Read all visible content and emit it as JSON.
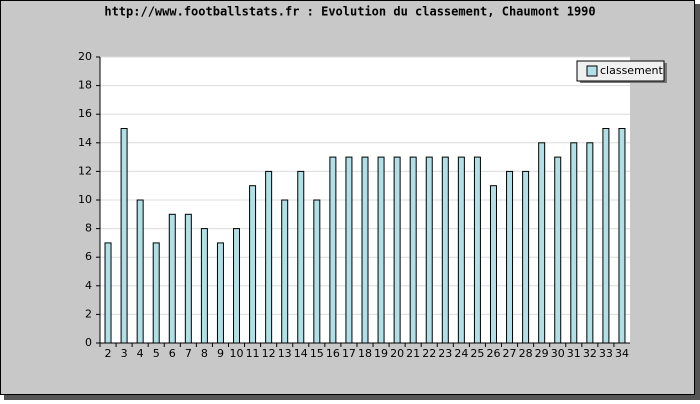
{
  "chart_data": {
    "type": "bar",
    "title": "http://www.footballstats.fr : Evolution du classement, Chaumont 1990",
    "categories": [
      "2",
      "3",
      "4",
      "5",
      "6",
      "7",
      "8",
      "9",
      "10",
      "11",
      "12",
      "13",
      "14",
      "15",
      "16",
      "17",
      "18",
      "19",
      "20",
      "21",
      "22",
      "23",
      "24",
      "25",
      "26",
      "27",
      "28",
      "29",
      "30",
      "31",
      "32",
      "33",
      "34"
    ],
    "series": [
      {
        "name": "classement",
        "color": "#b0e0e6",
        "values": [
          7,
          15,
          10,
          7,
          9,
          9,
          8,
          7,
          8,
          11,
          12,
          10,
          12,
          10,
          13,
          13,
          13,
          13,
          13,
          13,
          13,
          13,
          13,
          13,
          11,
          12,
          12,
          14,
          13,
          14,
          14,
          15,
          15
        ]
      }
    ],
    "ylim": [
      0,
      20
    ],
    "yticks": [
      0,
      2,
      4,
      6,
      8,
      10,
      12,
      14,
      16,
      18,
      20
    ],
    "grid": true,
    "legend": "top-right"
  }
}
